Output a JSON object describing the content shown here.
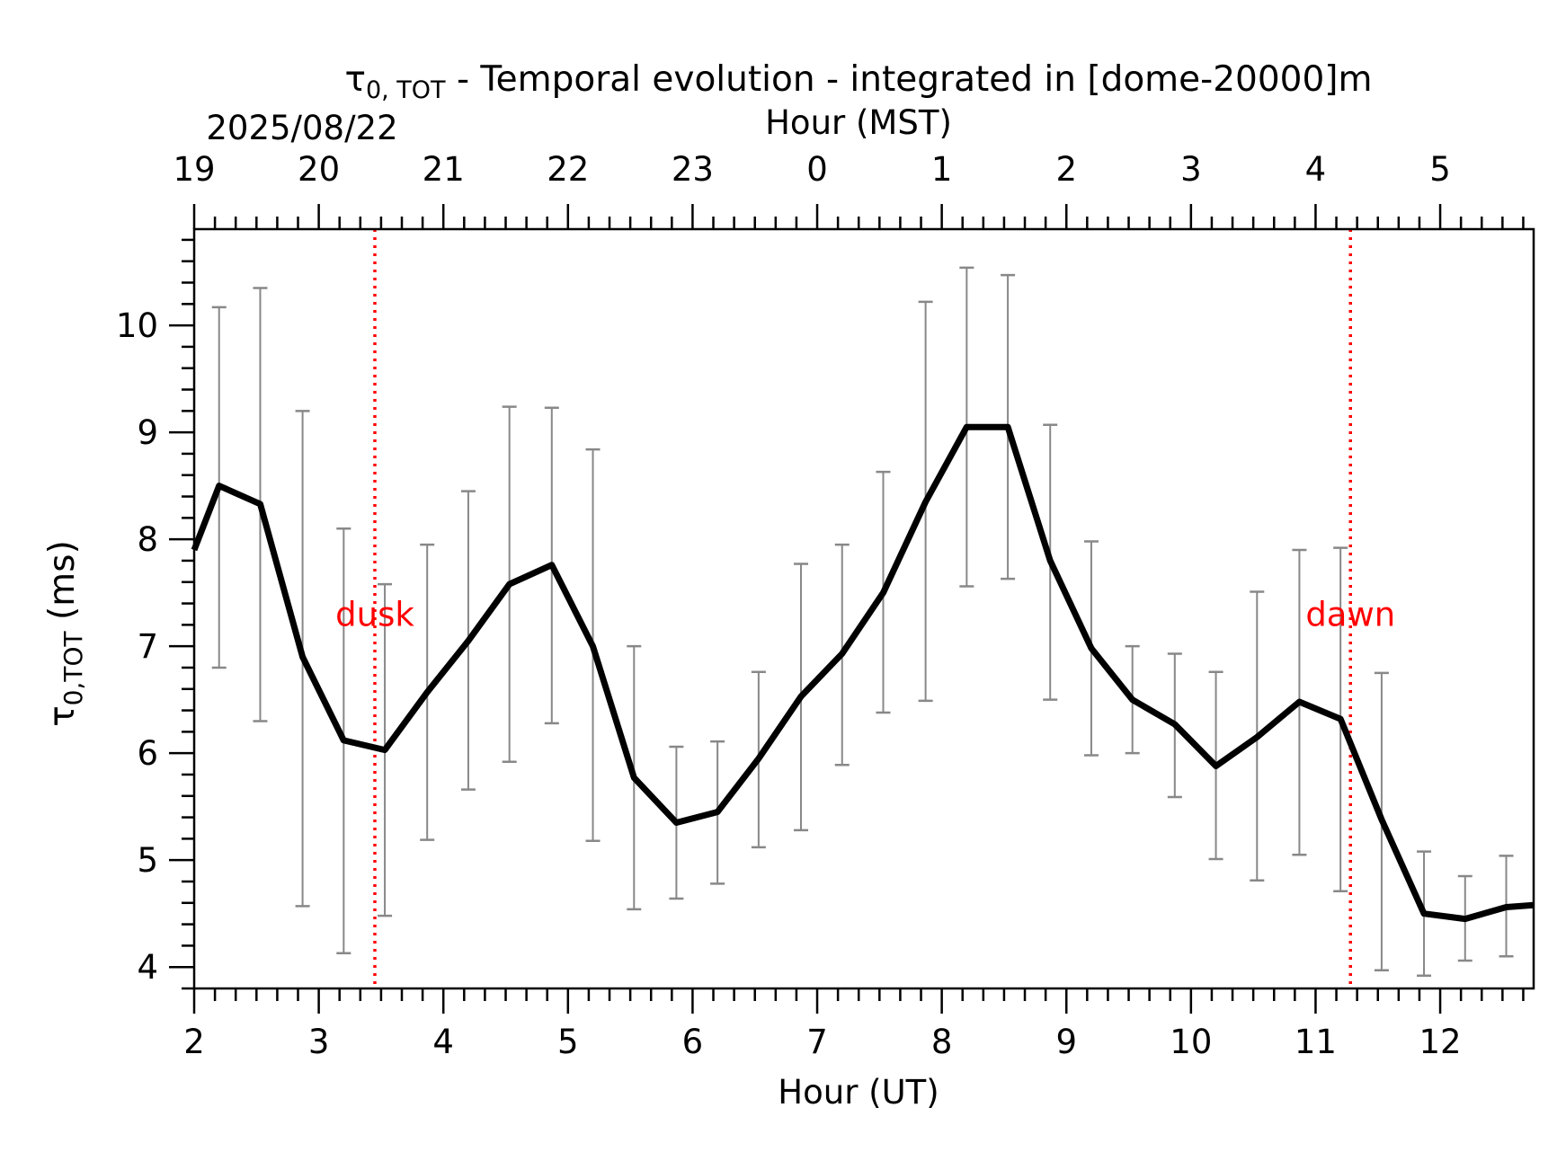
{
  "chart_data": {
    "type": "line",
    "title_tau": "τ",
    "title_sub": "0, TOT",
    "title_rest": " - Temporal evolution - integrated in [dome-20000]m",
    "date_label": "2025/08/22",
    "xlabel_top": "Hour (MST)",
    "xlabel": "Hour (UT)",
    "ylabel_tau": "τ",
    "ylabel_sub": "0,TOT",
    "ylabel_unit": " (ms)",
    "xlim": [
      2.0,
      12.75
    ],
    "ylim": [
      3.8,
      10.9
    ],
    "x_ticks": [
      2,
      3,
      4,
      5,
      6,
      7,
      8,
      9,
      10,
      11,
      12
    ],
    "x_tick_labels": [
      "2",
      "3",
      "4",
      "5",
      "6",
      "7",
      "8",
      "9",
      "10",
      "11",
      "12"
    ],
    "y_ticks": [
      4,
      5,
      6,
      7,
      8,
      9,
      10
    ],
    "y_tick_labels": [
      "4",
      "5",
      "6",
      "7",
      "8",
      "9",
      "10"
    ],
    "top_tick_labels": [
      "19",
      "20",
      "21",
      "22",
      "23",
      "0",
      "1",
      "2",
      "3",
      "4",
      "5"
    ],
    "mst_offset_hours": -7,
    "series": [
      {
        "x": [
          2.0,
          2.2,
          2.53,
          2.87,
          3.2,
          3.53,
          3.87,
          4.2,
          4.53,
          4.87,
          5.2,
          5.53,
          5.87,
          6.2,
          6.53,
          6.87,
          7.2,
          7.53,
          7.87,
          8.2,
          8.53,
          8.87,
          9.2,
          9.53,
          9.87,
          10.2,
          10.53,
          10.87,
          11.2,
          11.53,
          11.87,
          12.2,
          12.53,
          12.75
        ],
        "y": [
          7.9,
          8.5,
          8.33,
          6.9,
          6.12,
          6.03,
          6.57,
          7.05,
          7.58,
          7.76,
          7.0,
          5.77,
          5.35,
          5.45,
          5.95,
          6.53,
          6.93,
          7.5,
          8.35,
          9.05,
          9.05,
          7.8,
          6.98,
          6.5,
          6.27,
          5.88,
          6.15,
          6.48,
          6.32,
          5.38,
          4.5,
          4.45,
          4.56,
          4.58
        ],
        "color": "#000000"
      }
    ],
    "error_bars": {
      "color": "#888888",
      "x": [
        2.2,
        2.53,
        2.87,
        3.2,
        3.53,
        3.87,
        4.2,
        4.53,
        4.87,
        5.2,
        5.53,
        5.87,
        6.2,
        6.53,
        6.87,
        7.2,
        7.53,
        7.87,
        8.2,
        8.53,
        8.87,
        9.2,
        9.53,
        9.87,
        10.2,
        10.53,
        10.87,
        11.2,
        11.53,
        11.87,
        12.2,
        12.53
      ],
      "low": [
        6.8,
        6.3,
        4.57,
        4.13,
        4.48,
        5.19,
        5.66,
        5.92,
        6.28,
        5.18,
        4.54,
        4.64,
        4.78,
        5.12,
        5.28,
        5.89,
        6.38,
        6.49,
        7.56,
        7.63,
        6.5,
        5.98,
        6.0,
        5.59,
        5.01,
        4.81,
        5.05,
        4.71,
        3.97,
        3.92,
        4.06,
        4.1
      ],
      "high": [
        10.17,
        10.35,
        9.2,
        8.1,
        7.58,
        7.95,
        8.45,
        9.24,
        9.23,
        8.84,
        7.0,
        6.06,
        6.11,
        6.76,
        7.77,
        7.95,
        8.63,
        10.22,
        10.54,
        10.47,
        9.07,
        7.98,
        7.0,
        6.93,
        6.76,
        7.51,
        7.9,
        7.92,
        6.75,
        5.08,
        4.85,
        5.04
      ]
    },
    "vertical_lines": [
      {
        "x": 3.45,
        "label": "dusk",
        "color": "#ff0000"
      },
      {
        "x": 11.28,
        "label": "dawn",
        "color": "#ff0000"
      }
    ],
    "annotation_y": 7.3
  }
}
